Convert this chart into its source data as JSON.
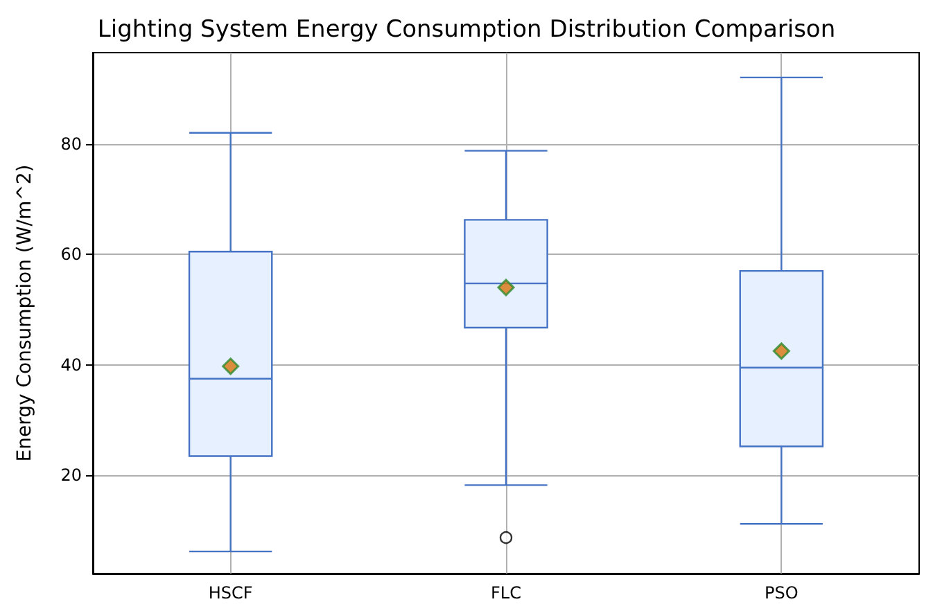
{
  "chart_data": {
    "type": "box",
    "title": "Lighting System Energy Consumption Distribution Comparison",
    "ylabel": "Energy Consumption (W/m^2)",
    "categories": [
      "HSCF",
      "FLC",
      "PSO"
    ],
    "boxes": [
      {
        "low": 6.25,
        "q1": 23.5,
        "median": 37.5,
        "q3": 60.5,
        "high": 82,
        "mean": 39.75
      },
      {
        "low": 18.25,
        "q1": 46.75,
        "median": 54.75,
        "q3": 66.25,
        "high": 78.75,
        "mean": 54,
        "outliers": [
          8.75
        ]
      },
      {
        "low": 11.25,
        "q1": 25.25,
        "median": 39.5,
        "q3": 57,
        "high": 92,
        "mean": 42.5
      }
    ],
    "color": "#4472c4",
    "ylim": [
      2.25,
      96.5
    ],
    "yticks": [
      20,
      40,
      60,
      80
    ],
    "grid": true
  }
}
